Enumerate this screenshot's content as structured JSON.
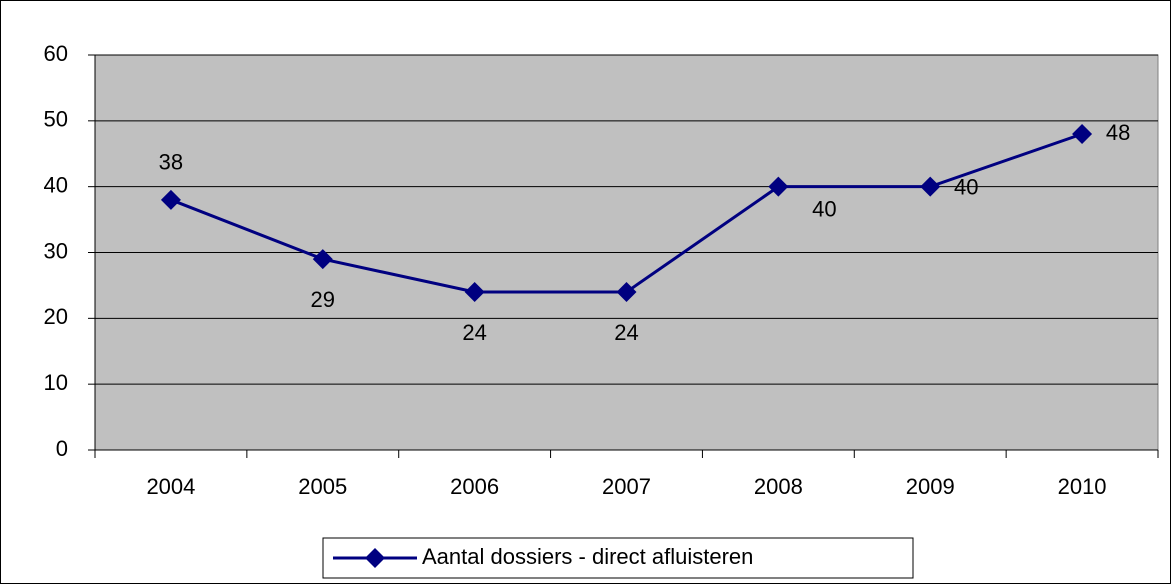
{
  "chart_data": {
    "type": "line",
    "categories": [
      "2004",
      "2005",
      "2006",
      "2007",
      "2008",
      "2009",
      "2010"
    ],
    "series": [
      {
        "name": "Aantal dossiers - direct afluisteren",
        "color": "#000080",
        "values": [
          38,
          29,
          24,
          24,
          40,
          40,
          48
        ]
      }
    ],
    "ylim": [
      0,
      60
    ],
    "yticks": [
      0,
      10,
      20,
      30,
      40,
      50,
      60
    ],
    "grid": true,
    "legend": "bottom"
  }
}
